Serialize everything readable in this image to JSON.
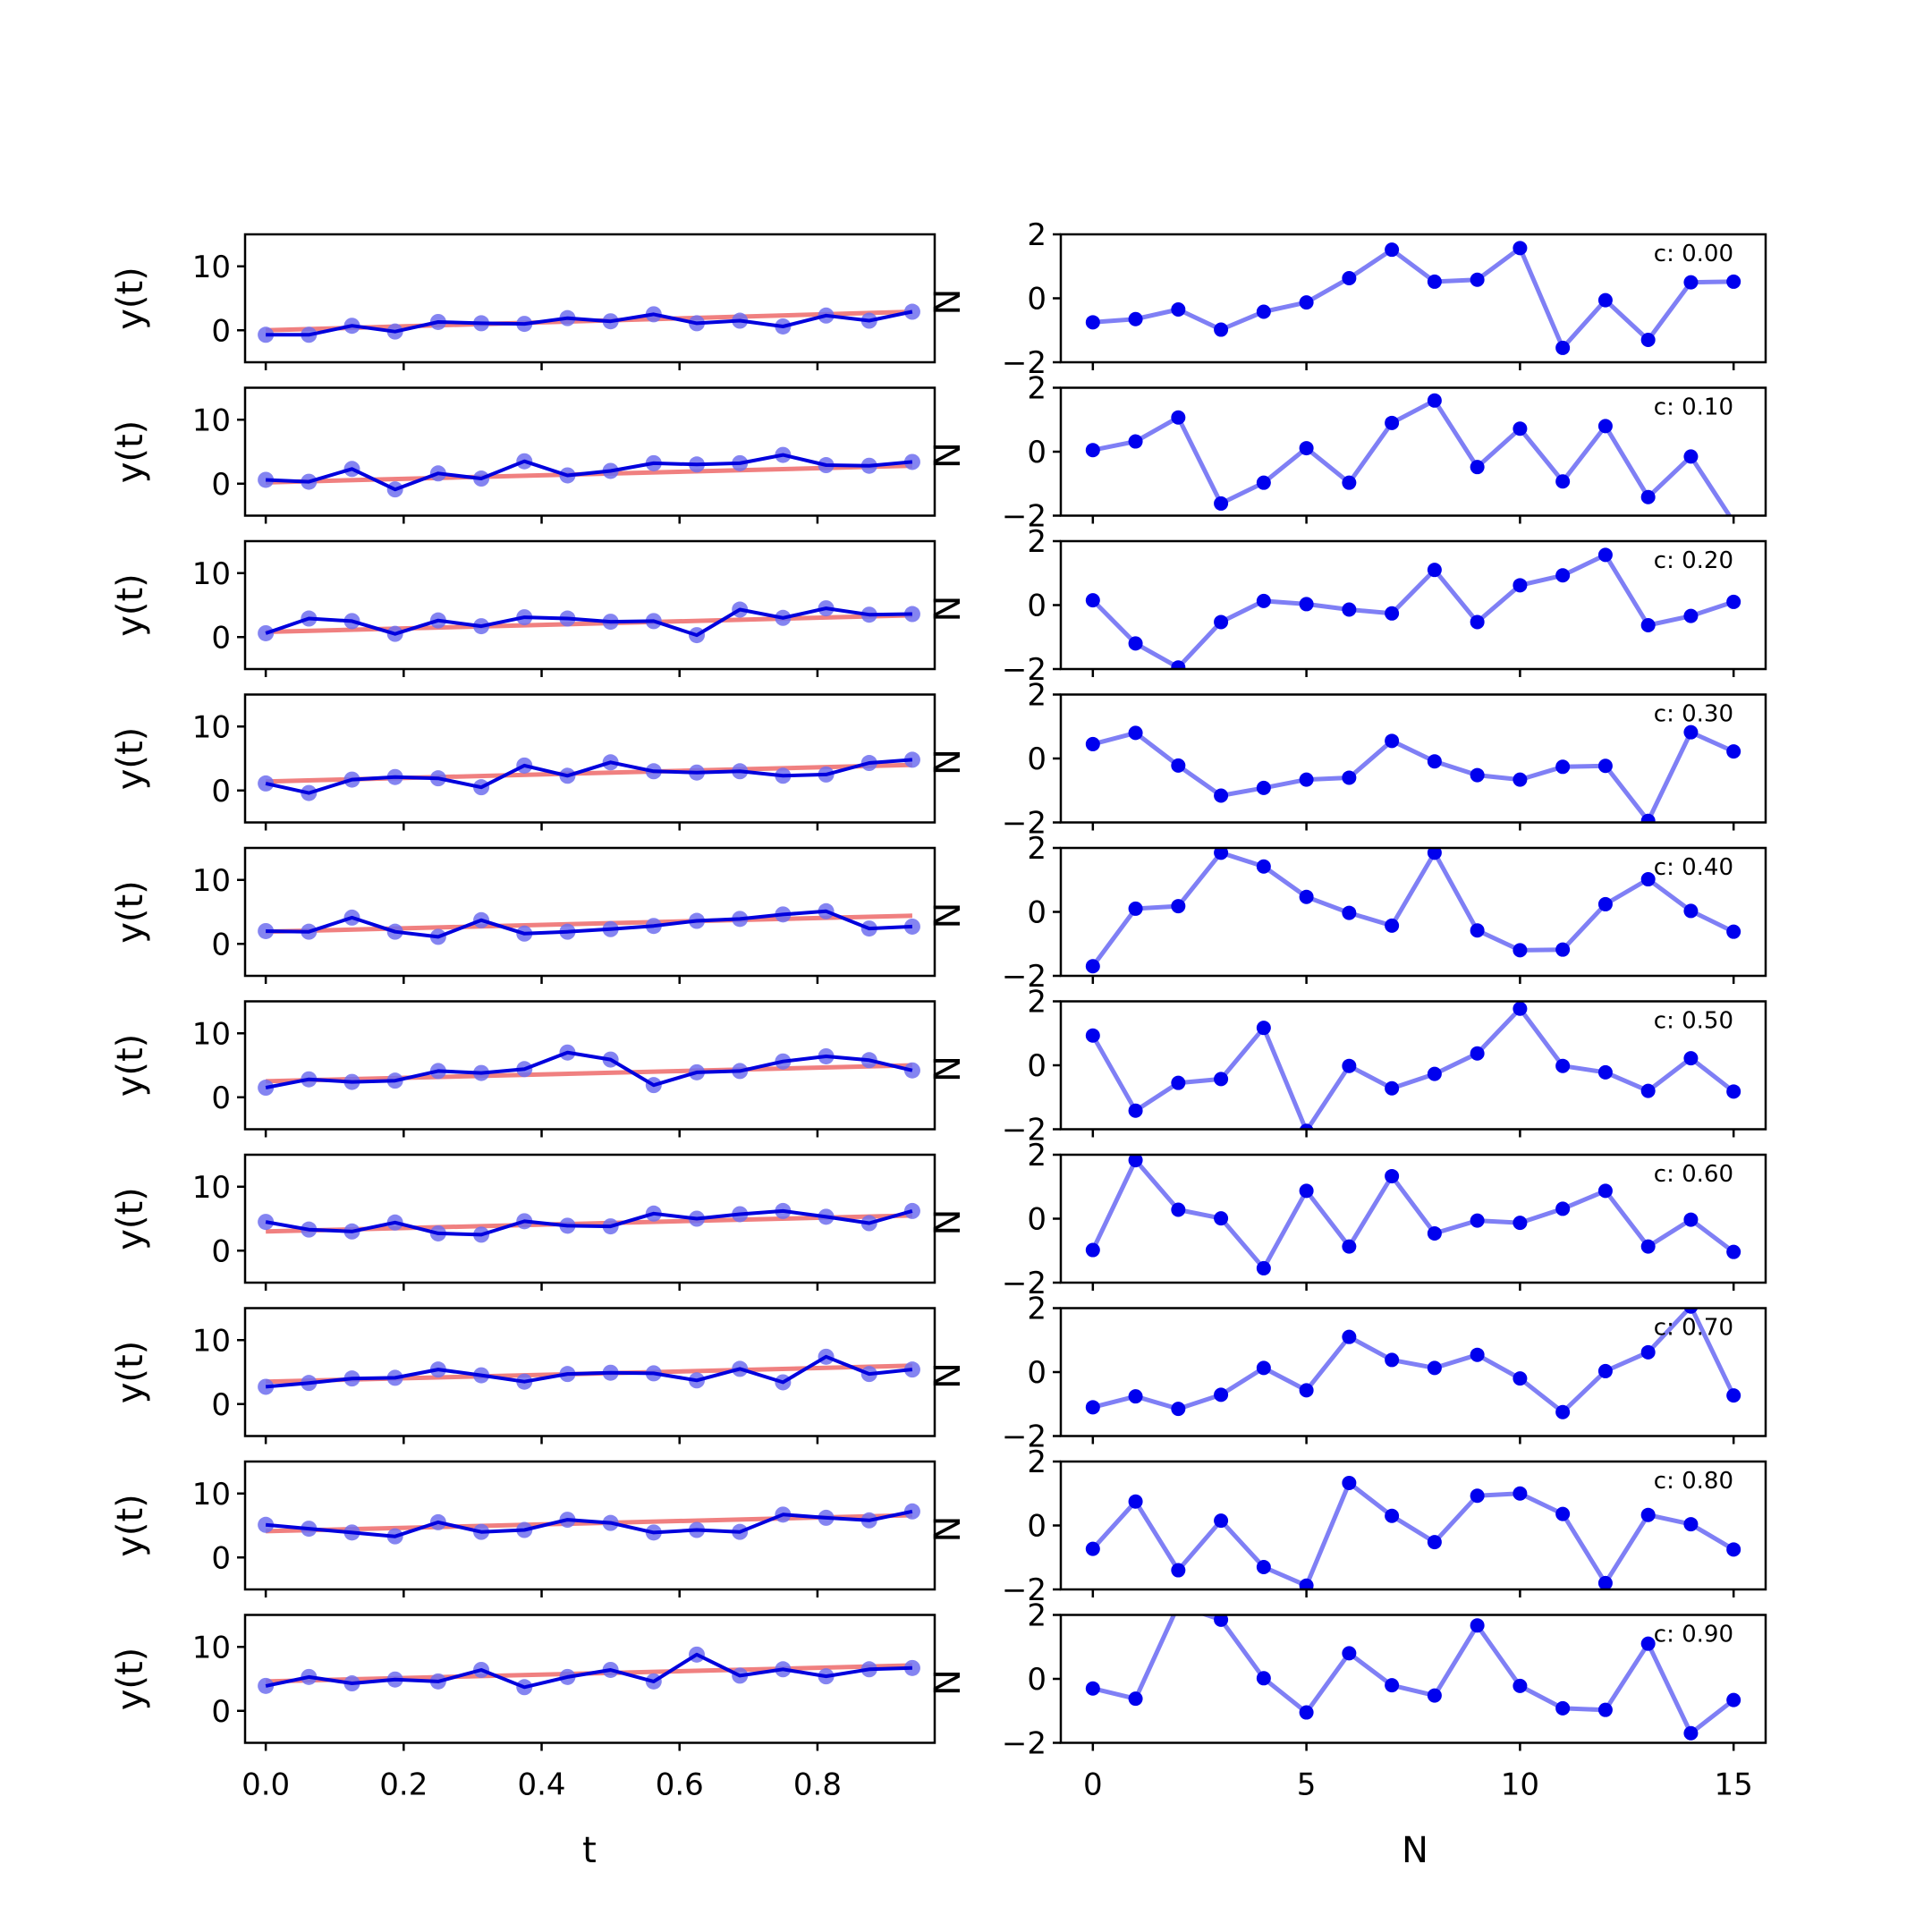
{
  "colors": {
    "fit_line": "#f08080",
    "data_line_left": "#0000dd",
    "data_marker_left": "#6f6fee",
    "data_line_right": "#7f7ff5",
    "data_marker_right": "#0000ee"
  },
  "chart_data": [
    {
      "panel": "left",
      "type": "line",
      "xlabel": "t",
      "ylabel": "y(t)",
      "clipped_ylabel": "N",
      "xlim": [
        -0.03,
        0.97
      ],
      "ylim": [
        -5,
        15
      ],
      "xticks": [
        0.0,
        0.2,
        0.4,
        0.6,
        0.8
      ],
      "xtick_labels": [
        "0.0",
        "0.2",
        "0.4",
        "0.6",
        "0.8"
      ],
      "yticks": [
        0,
        10
      ],
      "ytick_labels": [
        "0",
        "10"
      ],
      "x": [
        0.0,
        0.0625,
        0.125,
        0.1875,
        0.25,
        0.3125,
        0.375,
        0.4375,
        0.5,
        0.5625,
        0.625,
        0.6875,
        0.75,
        0.8125,
        0.875,
        0.9375
      ],
      "rows": [
        {
          "fit": [
            0.0,
            2.9
          ],
          "values": [
            -0.7,
            -0.7,
            0.7,
            -0.2,
            1.3,
            1.1,
            1.0,
            1.9,
            1.4,
            2.5,
            1.1,
            1.5,
            0.6,
            2.3,
            1.5,
            2.9
          ]
        },
        {
          "fit": [
            0.2,
            2.8
          ],
          "values": [
            0.6,
            0.3,
            2.3,
            -0.9,
            1.6,
            0.8,
            3.5,
            1.3,
            2.0,
            3.2,
            3.0,
            3.2,
            4.5,
            2.9,
            2.8,
            3.4
          ]
        },
        {
          "fit": [
            0.8,
            3.4
          ],
          "values": [
            0.6,
            2.9,
            2.5,
            0.5,
            2.6,
            1.7,
            3.1,
            2.9,
            2.4,
            2.5,
            0.3,
            4.3,
            3.0,
            4.5,
            3.5,
            3.6
          ]
        },
        {
          "fit": [
            1.4,
            4.0
          ],
          "values": [
            1.1,
            -0.4,
            1.7,
            2.1,
            1.9,
            0.5,
            3.9,
            2.3,
            4.4,
            3.0,
            2.8,
            3.0,
            2.3,
            2.5,
            4.3,
            4.8
          ]
        },
        {
          "fit": [
            1.9,
            4.4
          ],
          "values": [
            2.0,
            1.9,
            4.1,
            1.9,
            1.1,
            3.7,
            1.6,
            1.9,
            2.3,
            2.8,
            3.6,
            3.9,
            4.6,
            5.1,
            2.4,
            2.7
          ]
        },
        {
          "fit": [
            2.5,
            5.0
          ],
          "values": [
            1.5,
            2.8,
            2.4,
            2.6,
            4.1,
            3.8,
            4.4,
            7.0,
            5.9,
            1.9,
            3.9,
            4.1,
            5.6,
            6.4,
            5.8,
            4.2
          ]
        },
        {
          "fit": [
            3.0,
            5.5
          ],
          "values": [
            4.5,
            3.3,
            3.0,
            4.4,
            2.7,
            2.5,
            4.6,
            3.9,
            3.8,
            5.8,
            5.0,
            5.7,
            6.2,
            5.3,
            4.3,
            6.2
          ]
        },
        {
          "fit": [
            3.5,
            6.0
          ],
          "values": [
            2.7,
            3.3,
            4.0,
            4.1,
            5.4,
            4.5,
            3.5,
            4.7,
            4.9,
            4.8,
            3.7,
            5.5,
            3.4,
            7.4,
            4.7,
            5.4
          ]
        },
        {
          "fit": [
            4.1,
            6.6
          ],
          "values": [
            5.1,
            4.5,
            3.9,
            3.3,
            5.5,
            4.0,
            4.3,
            5.9,
            5.4,
            3.9,
            4.3,
            4.0,
            6.7,
            6.2,
            5.8,
            7.2
          ]
        },
        {
          "fit": [
            4.6,
            7.1
          ],
          "values": [
            3.9,
            5.3,
            4.3,
            4.9,
            4.6,
            6.4,
            3.7,
            5.3,
            6.4,
            4.6,
            8.8,
            5.5,
            6.5,
            5.4,
            6.5,
            6.7
          ]
        }
      ]
    },
    {
      "panel": "right",
      "type": "line",
      "xlabel": "N",
      "xlim": [
        -0.75,
        15.75
      ],
      "ylim": [
        -2,
        2
      ],
      "xticks": [
        0,
        5,
        10,
        15
      ],
      "xtick_labels": [
        "0",
        "5",
        "10",
        "15"
      ],
      "yticks": [
        -2,
        0,
        2
      ],
      "ytick_labels": [
        "−2",
        "0",
        "2"
      ],
      "x": [
        0,
        1,
        2,
        3,
        4,
        5,
        6,
        7,
        8,
        9,
        10,
        11,
        12,
        13,
        14,
        15
      ],
      "rows": [
        {
          "annotation": "c: 0.00",
          "values": [
            -0.75,
            -0.65,
            -0.35,
            -0.98,
            -0.42,
            -0.13,
            0.63,
            1.52,
            0.52,
            0.58,
            1.57,
            -1.55,
            -0.06,
            -1.3,
            0.5,
            0.52
          ]
        },
        {
          "annotation": "c: 0.10",
          "values": [
            0.05,
            0.32,
            1.07,
            -1.62,
            -0.97,
            0.11,
            -0.97,
            0.9,
            1.6,
            -0.48,
            0.72,
            -0.93,
            0.8,
            -1.42,
            -0.15,
            -2.2
          ]
        },
        {
          "annotation": "c: 0.20",
          "values": [
            0.15,
            -1.2,
            -1.95,
            -0.53,
            0.13,
            0.03,
            -0.14,
            -0.26,
            1.1,
            -0.53,
            0.62,
            0.93,
            1.57,
            -0.63,
            -0.34,
            0.1
          ]
        },
        {
          "annotation": "c: 0.30",
          "values": [
            0.45,
            0.8,
            -0.22,
            -1.16,
            -0.92,
            -0.66,
            -0.6,
            0.55,
            -0.09,
            -0.52,
            -0.66,
            -0.26,
            -0.23,
            -1.95,
            0.82,
            0.22
          ]
        },
        {
          "annotation": "c: 0.40",
          "values": [
            -1.7,
            0.1,
            0.18,
            1.85,
            1.42,
            0.47,
            -0.03,
            -0.43,
            1.85,
            -0.58,
            -1.2,
            -1.18,
            0.24,
            1.02,
            0.03,
            -0.62
          ]
        },
        {
          "annotation": "c: 0.50",
          "values": [
            0.93,
            -1.42,
            -0.55,
            -0.43,
            1.17,
            -2.05,
            -0.02,
            -0.72,
            -0.27,
            0.37,
            1.77,
            -0.02,
            -0.22,
            -0.8,
            0.22,
            -0.82
          ]
        },
        {
          "annotation": "c: 0.60",
          "values": [
            -0.98,
            1.83,
            0.28,
            0.01,
            -1.55,
            0.87,
            -0.87,
            1.33,
            -0.46,
            -0.06,
            -0.13,
            0.31,
            0.87,
            -0.87,
            -0.03,
            -1.04
          ]
        },
        {
          "annotation": "c: 0.70",
          "values": [
            -1.1,
            -0.76,
            -1.15,
            -0.71,
            0.13,
            -0.57,
            1.1,
            0.38,
            0.13,
            0.54,
            -0.2,
            -1.25,
            0.03,
            0.62,
            2.05,
            -0.73
          ]
        },
        {
          "annotation": "c: 0.80",
          "values": [
            -0.73,
            0.75,
            -1.4,
            0.15,
            -1.3,
            -1.88,
            1.33,
            0.3,
            -0.52,
            0.93,
            1.0,
            0.36,
            -1.8,
            0.33,
            0.04,
            -0.75
          ]
        },
        {
          "annotation": "c: 0.90",
          "values": [
            -0.3,
            -0.62,
            2.3,
            1.85,
            0.02,
            -1.05,
            0.8,
            -0.2,
            -0.52,
            1.67,
            -0.22,
            -0.92,
            -0.97,
            1.1,
            -1.7,
            -0.66
          ]
        }
      ]
    }
  ]
}
